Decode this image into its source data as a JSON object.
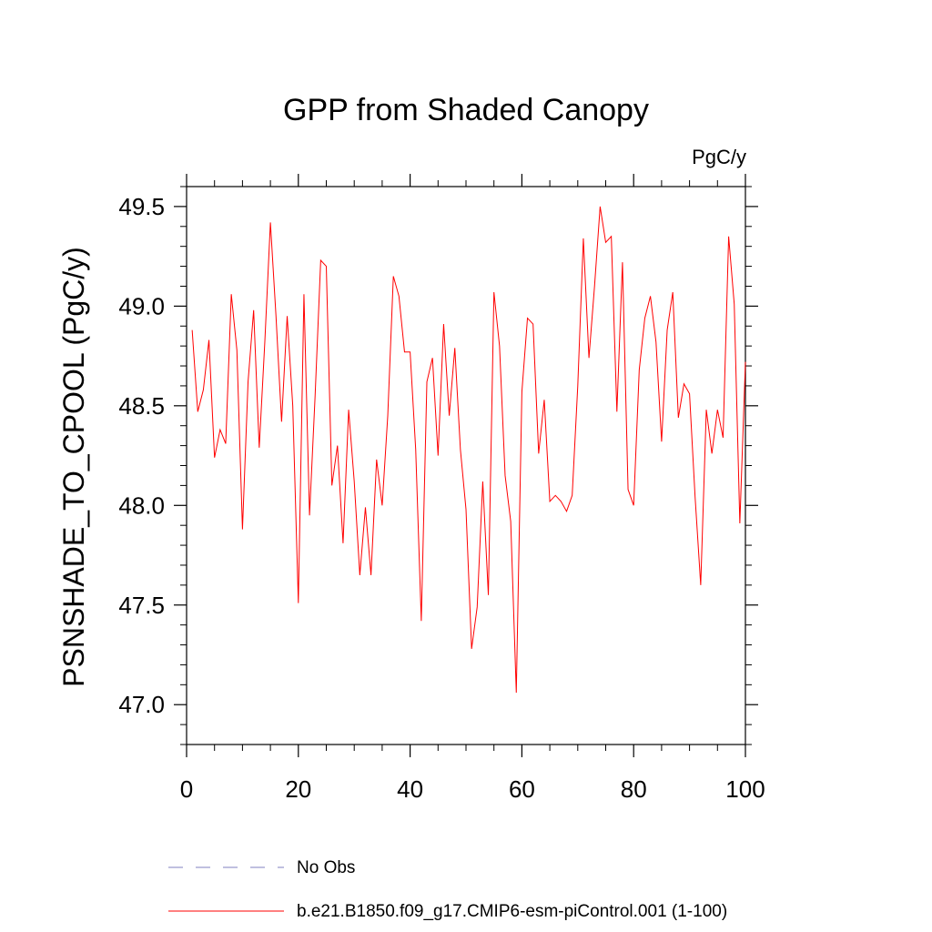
{
  "chart_data": {
    "type": "line",
    "title": "GPP from Shaded Canopy",
    "units": "PgC/y",
    "xlabel": "",
    "ylabel": "PSNSHADE_TO_CPOOL  (PgC/y)",
    "xlim": [
      0,
      100
    ],
    "ylim": [
      46.8,
      49.6
    ],
    "x_ticks": [
      0,
      20,
      40,
      60,
      80,
      100
    ],
    "x_tick_labels": [
      "0",
      "20",
      "40",
      "60",
      "80",
      "100"
    ],
    "y_ticks": [
      47.0,
      47.5,
      48.0,
      48.5,
      49.0,
      49.5
    ],
    "y_tick_labels": [
      "47.0",
      "47.5",
      "48.0",
      "48.5",
      "49.0",
      "49.5"
    ],
    "grid": false,
    "legend_placement": "bottom",
    "series": [
      {
        "name": "No Obs",
        "style": "dashed",
        "color": "#8080c0",
        "values": []
      },
      {
        "name": "b.e21.B1850.f09_g17.CMIP6-esm-piControl.001 (1-100)",
        "style": "solid",
        "color": "#ff0000",
        "x": [
          1,
          2,
          3,
          4,
          5,
          6,
          7,
          8,
          9,
          10,
          11,
          12,
          13,
          14,
          15,
          16,
          17,
          18,
          19,
          20,
          21,
          22,
          23,
          24,
          25,
          26,
          27,
          28,
          29,
          30,
          31,
          32,
          33,
          34,
          35,
          36,
          37,
          38,
          39,
          40,
          41,
          42,
          43,
          44,
          45,
          46,
          47,
          48,
          49,
          50,
          51,
          52,
          53,
          54,
          55,
          56,
          57,
          58,
          59,
          60,
          61,
          62,
          63,
          64,
          65,
          66,
          67,
          68,
          69,
          70,
          71,
          72,
          73,
          74,
          75,
          76,
          77,
          78,
          79,
          80,
          81,
          82,
          83,
          84,
          85,
          86,
          87,
          88,
          89,
          90,
          91,
          92,
          93,
          94,
          95,
          96,
          97,
          98,
          99,
          100
        ],
        "values": [
          48.88,
          48.47,
          48.58,
          48.83,
          48.24,
          48.38,
          48.31,
          49.06,
          48.78,
          47.88,
          48.62,
          48.98,
          48.29,
          48.82,
          49.42,
          48.95,
          48.42,
          48.95,
          48.5,
          47.51,
          49.06,
          47.95,
          48.55,
          49.23,
          49.2,
          48.1,
          48.3,
          47.81,
          48.48,
          48.12,
          47.65,
          47.99,
          47.65,
          48.23,
          48.0,
          48.45,
          49.15,
          49.05,
          48.77,
          48.77,
          48.28,
          47.42,
          48.62,
          48.74,
          48.25,
          48.91,
          48.45,
          48.79,
          48.28,
          47.98,
          47.28,
          47.49,
          48.12,
          47.55,
          49.07,
          48.8,
          48.15,
          47.92,
          47.06,
          48.57,
          48.94,
          48.91,
          48.26,
          48.53,
          48.02,
          48.05,
          48.02,
          47.97,
          48.05,
          48.6,
          49.34,
          48.74,
          49.1,
          49.5,
          49.32,
          49.35,
          48.47,
          49.22,
          48.08,
          48.0,
          48.68,
          48.94,
          49.05,
          48.82,
          48.32,
          48.88,
          49.07,
          48.44,
          48.61,
          48.56,
          48.04,
          47.6,
          48.48,
          48.26,
          48.48,
          48.34,
          49.35,
          49.01,
          47.91,
          48.72
        ]
      }
    ]
  }
}
